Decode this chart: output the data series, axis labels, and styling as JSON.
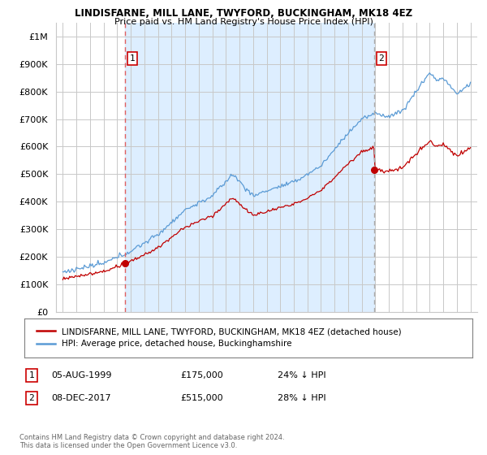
{
  "title": "LINDISFARNE, MILL LANE, TWYFORD, BUCKINGHAM, MK18 4EZ",
  "subtitle": "Price paid vs. HM Land Registry's House Price Index (HPI)",
  "ylabel_ticks": [
    "£0",
    "£100K",
    "£200K",
    "£300K",
    "£400K",
    "£500K",
    "£600K",
    "£700K",
    "£800K",
    "£900K",
    "£1M"
  ],
  "ytick_values": [
    0,
    100000,
    200000,
    300000,
    400000,
    500000,
    600000,
    700000,
    800000,
    900000,
    1000000
  ],
  "xlim": [
    1994.5,
    2025.5
  ],
  "ylim": [
    0,
    1050000
  ],
  "legend_line1": "LINDISFARNE, MILL LANE, TWYFORD, BUCKINGHAM, MK18 4EZ (detached house)",
  "legend_line2": "HPI: Average price, detached house, Buckinghamshire",
  "sale1_label": "1",
  "sale1_date": "05-AUG-1999",
  "sale1_price": "£175,000",
  "sale1_note": "24% ↓ HPI",
  "sale1_x": 1999.6,
  "sale1_y": 175000,
  "sale2_label": "2",
  "sale2_date": "08-DEC-2017",
  "sale2_price": "£515,000",
  "sale2_note": "28% ↓ HPI",
  "sale2_x": 2017.93,
  "sale2_y": 515000,
  "footnote": "Contains HM Land Registry data © Crown copyright and database right 2024.\nThis data is licensed under the Open Government Licence v3.0.",
  "hpi_color": "#5b9bd5",
  "price_color": "#c00000",
  "vline_color": "#e06060",
  "shade_color": "#ddeeff",
  "background_color": "#ffffff",
  "grid_color": "#c8c8c8",
  "marker1_x": 1999.6,
  "marker1_y_axis": 0.88,
  "marker2_x": 2017.93,
  "marker2_y_axis": 0.88
}
